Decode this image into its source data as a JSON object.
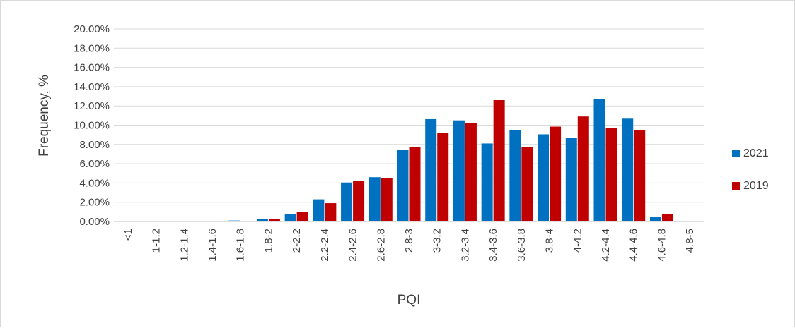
{
  "chart_data": {
    "type": "bar",
    "title": "",
    "xlabel": "PQI",
    "ylabel": "Frequency, %",
    "ylim": [
      0,
      20
    ],
    "yticks": [
      "0.00%",
      "2.00%",
      "4.00%",
      "6.00%",
      "8.00%",
      "10.00%",
      "12.00%",
      "14.00%",
      "16.00%",
      "18.00%",
      "20.00%"
    ],
    "grid": true,
    "legend_position": "right",
    "categories": [
      "<1",
      "1-1.2",
      "1.2-1.4",
      "1.4-1.6",
      "1.6-1.8",
      "1.8-2",
      "2-2.2",
      "2.2-2.4",
      "2.4-2.6",
      "2.6-2.8",
      "2.8-3",
      "3-3.2",
      "3.2-3.4",
      "3.4-3.6",
      "3.6-3.8",
      "3.8-4",
      "4-4.2",
      "4.2-4.4",
      "4.4-4.6",
      "4.6-4.8",
      "4.8-5"
    ],
    "series": [
      {
        "name": "2021",
        "color": "#0070c0",
        "values": [
          0,
          0,
          0,
          0,
          0.1,
          0.25,
          0.8,
          2.3,
          4.05,
          4.6,
          7.4,
          10.7,
          10.5,
          8.1,
          9.5,
          9.05,
          8.7,
          12.7,
          10.75,
          0.5,
          0
        ]
      },
      {
        "name": "2019",
        "color": "#c00000",
        "values": [
          0,
          0,
          0,
          0,
          0.02,
          0.25,
          1.0,
          1.9,
          4.2,
          4.5,
          7.7,
          9.2,
          10.2,
          12.6,
          7.7,
          9.85,
          10.9,
          9.7,
          9.45,
          0.75,
          0
        ]
      }
    ]
  }
}
